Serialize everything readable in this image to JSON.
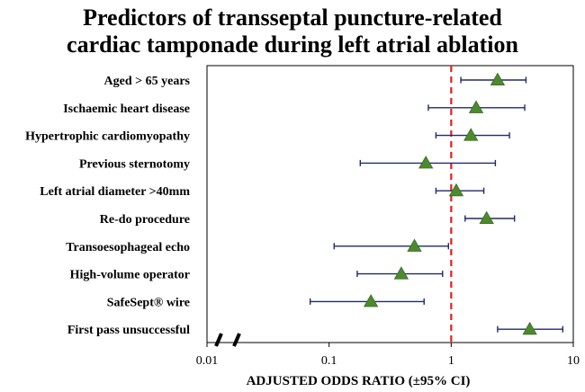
{
  "chart_data": {
    "type": "forest",
    "title_lines": [
      "Predictors of transseptal puncture-related",
      "cardiac tamponade during left atrial ablation"
    ],
    "xlabel": "ADJUSTED ODDS RATIO (±95% CI)",
    "x_scale": "log",
    "xlim": [
      0.01,
      10
    ],
    "xticks": [
      0.01,
      0.1,
      1,
      10
    ],
    "xtick_labels": [
      "0.01",
      "0.1",
      "1",
      "10"
    ],
    "axis_break": true,
    "reference_line": 1,
    "colors": {
      "ci_line": "#1f2a6b",
      "marker": "#4d8a2e",
      "reference": "#e02020",
      "frame": "#000000"
    },
    "rows": [
      {
        "label": "Aged > 65 years",
        "or": 2.4,
        "lower": 1.2,
        "upper": 4.1
      },
      {
        "label": "Ischaemic heart disease",
        "or": 1.6,
        "lower": 0.65,
        "upper": 4.0
      },
      {
        "label": "Hypertrophic cardiomyopathy",
        "or": 1.45,
        "lower": 0.75,
        "upper": 3.0
      },
      {
        "label": "Previous sternotomy",
        "or": 0.62,
        "lower": 0.18,
        "upper": 2.3
      },
      {
        "label": "Left atrial diameter >40mm",
        "or": 1.1,
        "lower": 0.75,
        "upper": 1.85
      },
      {
        "label": "Re-do procedure",
        "or": 1.95,
        "lower": 1.3,
        "upper": 3.3
      },
      {
        "label": "Transoesophageal echo",
        "or": 0.5,
        "lower": 0.11,
        "upper": 0.95
      },
      {
        "label": "High-volume operator",
        "or": 0.39,
        "lower": 0.17,
        "upper": 0.85
      },
      {
        "label": "SafeSept® wire",
        "or": 0.22,
        "lower": 0.07,
        "upper": 0.6
      },
      {
        "label": "First pass unsuccessful",
        "or": 4.4,
        "lower": 2.4,
        "upper": 8.2
      }
    ]
  }
}
